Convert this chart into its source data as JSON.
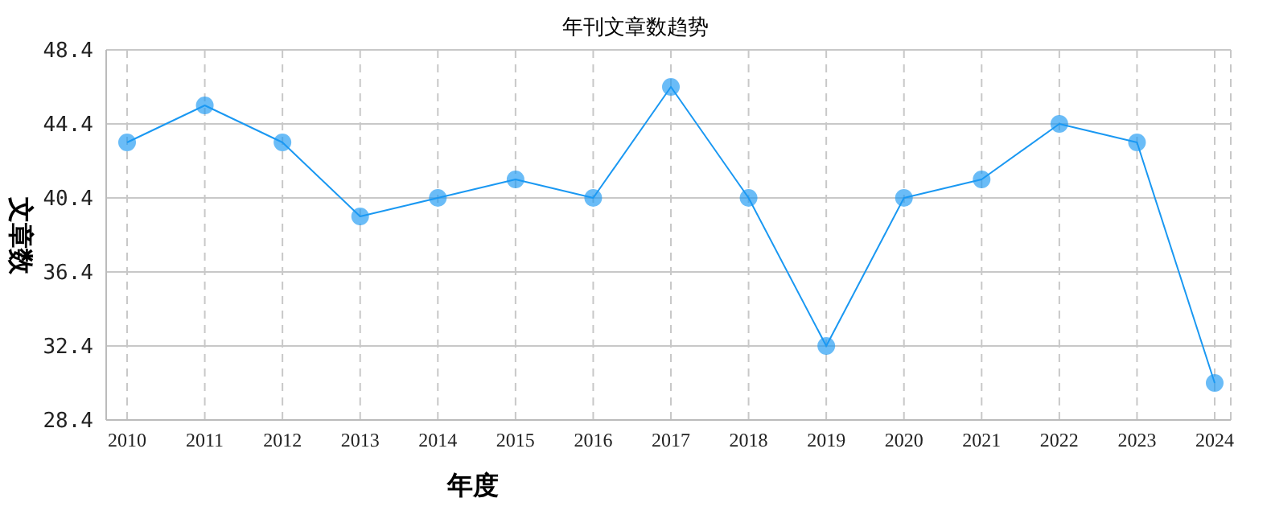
{
  "chart_data": {
    "type": "line",
    "title": "年刊文章数趋势",
    "xlabel": "年度",
    "ylabel": "文章数",
    "categories": [
      "2010",
      "2011",
      "2012",
      "2013",
      "2014",
      "2015",
      "2016",
      "2017",
      "2018",
      "2019",
      "2020",
      "2021",
      "2022",
      "2023",
      "2024"
    ],
    "series": [
      {
        "color": "#1a98f2",
        "values": [
          43.4,
          45.4,
          43.4,
          39.4,
          40.4,
          41.4,
          40.4,
          46.4,
          40.4,
          32.4,
          40.4,
          41.4,
          44.4,
          43.4,
          30.4
        ]
      }
    ],
    "ylim": [
      28.4,
      48.4
    ],
    "yticks": [
      28.4,
      32.4,
      36.4,
      40.4,
      44.4,
      48.4
    ],
    "grid": true,
    "marker": "circle",
    "line_style": "solid"
  }
}
